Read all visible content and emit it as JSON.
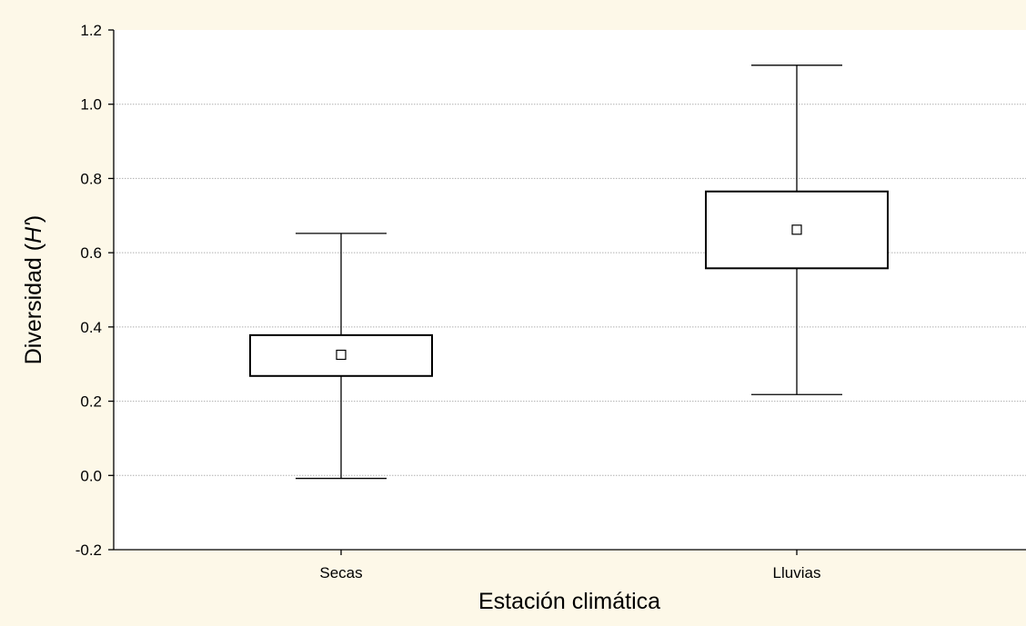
{
  "chart_data": {
    "type": "box",
    "title": "",
    "xlabel": "Estación climática",
    "ylabel": "Diversidad (",
    "ylabel_italic": "H'",
    "ylabel_close": ")",
    "ylim": [
      -0.2,
      1.2
    ],
    "yticks": [
      -0.2,
      0.0,
      0.2,
      0.4,
      0.6,
      0.8,
      1.0,
      1.2
    ],
    "ytick_labels": [
      "-0.2",
      "0.0",
      "0.2",
      "0.4",
      "0.6",
      "0.8",
      "1.0",
      "1.2"
    ],
    "grid": "horizontal dotted",
    "categories": [
      "Secas",
      "Lluvias"
    ],
    "boxes": [
      {
        "category": "Secas",
        "whisker_low": -0.008,
        "q1": 0.268,
        "center": 0.325,
        "q3": 0.378,
        "whisker_high": 0.652
      },
      {
        "category": "Lluvias",
        "whisker_low": 0.218,
        "q1": 0.558,
        "center": 0.662,
        "q3": 0.765,
        "whisker_high": 1.105
      }
    ],
    "colors": {
      "background": "#fdf8e8",
      "plot_background": "#ffffff",
      "grid": "#b0b0b0",
      "ink": "#000000"
    }
  }
}
